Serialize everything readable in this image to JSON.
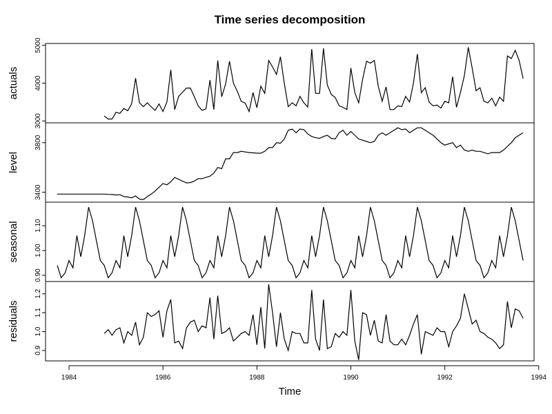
{
  "chart_data": {
    "type": "line",
    "title": "Time series decomposition",
    "xlabel": "Time",
    "xlim": [
      1983.5,
      1993.9
    ],
    "xticks": [
      1984,
      1986,
      1988,
      1990,
      1992,
      1994
    ],
    "x_start": 1983.75,
    "x_step": 0.08333,
    "panels": [
      {
        "name": "actuals",
        "ylim": [
          2950,
          5050
        ],
        "yticks": [
          3000,
          4000,
          5000
        ],
        "values": [
          null,
          null,
          null,
          null,
          null,
          null,
          null,
          null,
          null,
          null,
          null,
          null,
          3130,
          3050,
          3050,
          3230,
          3200,
          3330,
          3270,
          3450,
          4130,
          3480,
          3380,
          3480,
          3370,
          3280,
          3450,
          3250,
          3500,
          4350,
          3300,
          3650,
          3760,
          3870,
          3870,
          3640,
          3400,
          3280,
          3320,
          4080,
          3300,
          4600,
          3640,
          3980,
          4580,
          4000,
          3780,
          3520,
          3470,
          3250,
          3750,
          3350,
          3920,
          3730,
          4600,
          4430,
          4230,
          4700,
          4000,
          3380,
          3480,
          3400,
          3650,
          3480,
          3370,
          4900,
          3730,
          3730,
          4920,
          3950,
          3700,
          3620,
          3400,
          3360,
          3300,
          4400,
          3750,
          3480,
          4100,
          4580,
          4530,
          4600,
          3920,
          3520,
          3900,
          3300,
          3300,
          3400,
          3380,
          3650,
          3500,
          4000,
          4770,
          3750,
          3880,
          3500,
          3400,
          3420,
          3340,
          3520,
          3480,
          4170,
          3360,
          3750,
          4200,
          4950,
          4400,
          3800,
          3880,
          3520,
          3480,
          3600,
          3400,
          3630,
          3520,
          4720,
          4650,
          4870,
          4600,
          4120
        ]
      },
      {
        "name": "level",
        "ylim": [
          3320,
          3960
        ],
        "yticks": [
          3400,
          3800
        ],
        "values": [
          3385,
          3385,
          3385,
          3385,
          3385,
          3385,
          3385,
          3385,
          3385,
          3385,
          3385,
          3385,
          3385,
          3383,
          3382,
          3378,
          3380,
          3365,
          3362,
          3355,
          3370,
          3345,
          3340,
          3365,
          3385,
          3410,
          3440,
          3470,
          3460,
          3485,
          3520,
          3505,
          3490,
          3475,
          3478,
          3490,
          3510,
          3510,
          3520,
          3530,
          3555,
          3600,
          3590,
          3670,
          3670,
          3720,
          3720,
          3730,
          3725,
          3720,
          3718,
          3715,
          3715,
          3730,
          3760,
          3760,
          3800,
          3795,
          3830,
          3900,
          3910,
          3880,
          3910,
          3905,
          3870,
          3850,
          3840,
          3835,
          3850,
          3860,
          3835,
          3830,
          3880,
          3900,
          3860,
          3890,
          3860,
          3830,
          3820,
          3810,
          3800,
          3810,
          3860,
          3880,
          3860,
          3880,
          3900,
          3920,
          3905,
          3910,
          3880,
          3900,
          3920,
          3920,
          3900,
          3880,
          3860,
          3830,
          3800,
          3780,
          3790,
          3800,
          3760,
          3780,
          3740,
          3730,
          3740,
          3730,
          3730,
          3720,
          3710,
          3720,
          3720,
          3720,
          3740,
          3770,
          3800,
          3840,
          3860,
          3880
        ]
      },
      {
        "name": "seasonal",
        "ylim": [
          0.875,
          1.195
        ],
        "yticks": [
          0.9,
          1.0,
          1.1
        ],
        "values": [
          0.94,
          0.89,
          0.91,
          0.96,
          0.93,
          1.06,
          0.975,
          1.06,
          1.175,
          1.12,
          1.04,
          0.96,
          0.94,
          0.89,
          0.91,
          0.96,
          0.93,
          1.06,
          0.975,
          1.06,
          1.175,
          1.12,
          1.04,
          0.96,
          0.94,
          0.89,
          0.91,
          0.96,
          0.93,
          1.06,
          0.975,
          1.06,
          1.175,
          1.12,
          1.04,
          0.96,
          0.94,
          0.89,
          0.91,
          0.96,
          0.93,
          1.06,
          0.975,
          1.06,
          1.175,
          1.12,
          1.04,
          0.96,
          0.94,
          0.89,
          0.91,
          0.96,
          0.93,
          1.06,
          0.975,
          1.06,
          1.175,
          1.12,
          1.04,
          0.96,
          0.94,
          0.89,
          0.91,
          0.96,
          0.93,
          1.06,
          0.975,
          1.06,
          1.175,
          1.12,
          1.04,
          0.96,
          0.94,
          0.89,
          0.91,
          0.96,
          0.93,
          1.06,
          0.975,
          1.06,
          1.175,
          1.12,
          1.04,
          0.96,
          0.94,
          0.89,
          0.91,
          0.96,
          0.93,
          1.06,
          0.975,
          1.06,
          1.175,
          1.12,
          1.04,
          0.96,
          0.94,
          0.89,
          0.91,
          0.96,
          0.93,
          1.06,
          0.975,
          1.06,
          1.175,
          1.12,
          1.04,
          0.96,
          0.94,
          0.89,
          0.91,
          0.96,
          0.93,
          1.06,
          0.975,
          1.06,
          1.175,
          1.12,
          1.04,
          0.96
        ]
      },
      {
        "name": "residuals",
        "ylim": [
          0.845,
          1.265
        ],
        "yticks": [
          0.9,
          1.0,
          1.1,
          1.2
        ],
        "values": [
          null,
          null,
          null,
          null,
          null,
          null,
          null,
          null,
          null,
          null,
          null,
          null,
          0.99,
          1.01,
          0.98,
          1.01,
          1.02,
          0.94,
          1.0,
          0.98,
          1.05,
          0.93,
          0.97,
          1.1,
          1.08,
          1.09,
          1.11,
          0.97,
          1.11,
          1.17,
          0.94,
          0.95,
          0.91,
          1.02,
          1.05,
          1.06,
          1.0,
          1.03,
          1.02,
          1.18,
          0.96,
          1.19,
          0.99,
          1.0,
          1.02,
          0.95,
          0.97,
          0.99,
          1.0,
          0.98,
          1.09,
          0.93,
          1.13,
          0.91,
          1.25,
          1.1,
          0.92,
          1.1,
          0.96,
          0.9,
          1.0,
          0.99,
          0.99,
          0.94,
          0.94,
          1.22,
          0.96,
          0.9,
          1.17,
          0.91,
          0.92,
          0.99,
          0.97,
          1.0,
          0.98,
          1.22,
          0.95,
          0.85,
          1.1,
          1.09,
          0.98,
          1.06,
          0.95,
          0.94,
          1.09,
          0.95,
          0.93,
          0.93,
          0.96,
          0.93,
          0.98,
          1.04,
          1.09,
          0.88,
          1.0,
          0.99,
          0.98,
          1.02,
          1.0,
          1.0,
          0.92,
          1.0,
          1.03,
          1.07,
          1.2,
          1.12,
          1.04,
          1.06,
          1.0,
          0.99,
          0.97,
          0.96,
          0.94,
          0.91,
          0.93,
          1.16,
          1.02,
          1.12,
          1.11,
          1.07
        ]
      }
    ]
  }
}
